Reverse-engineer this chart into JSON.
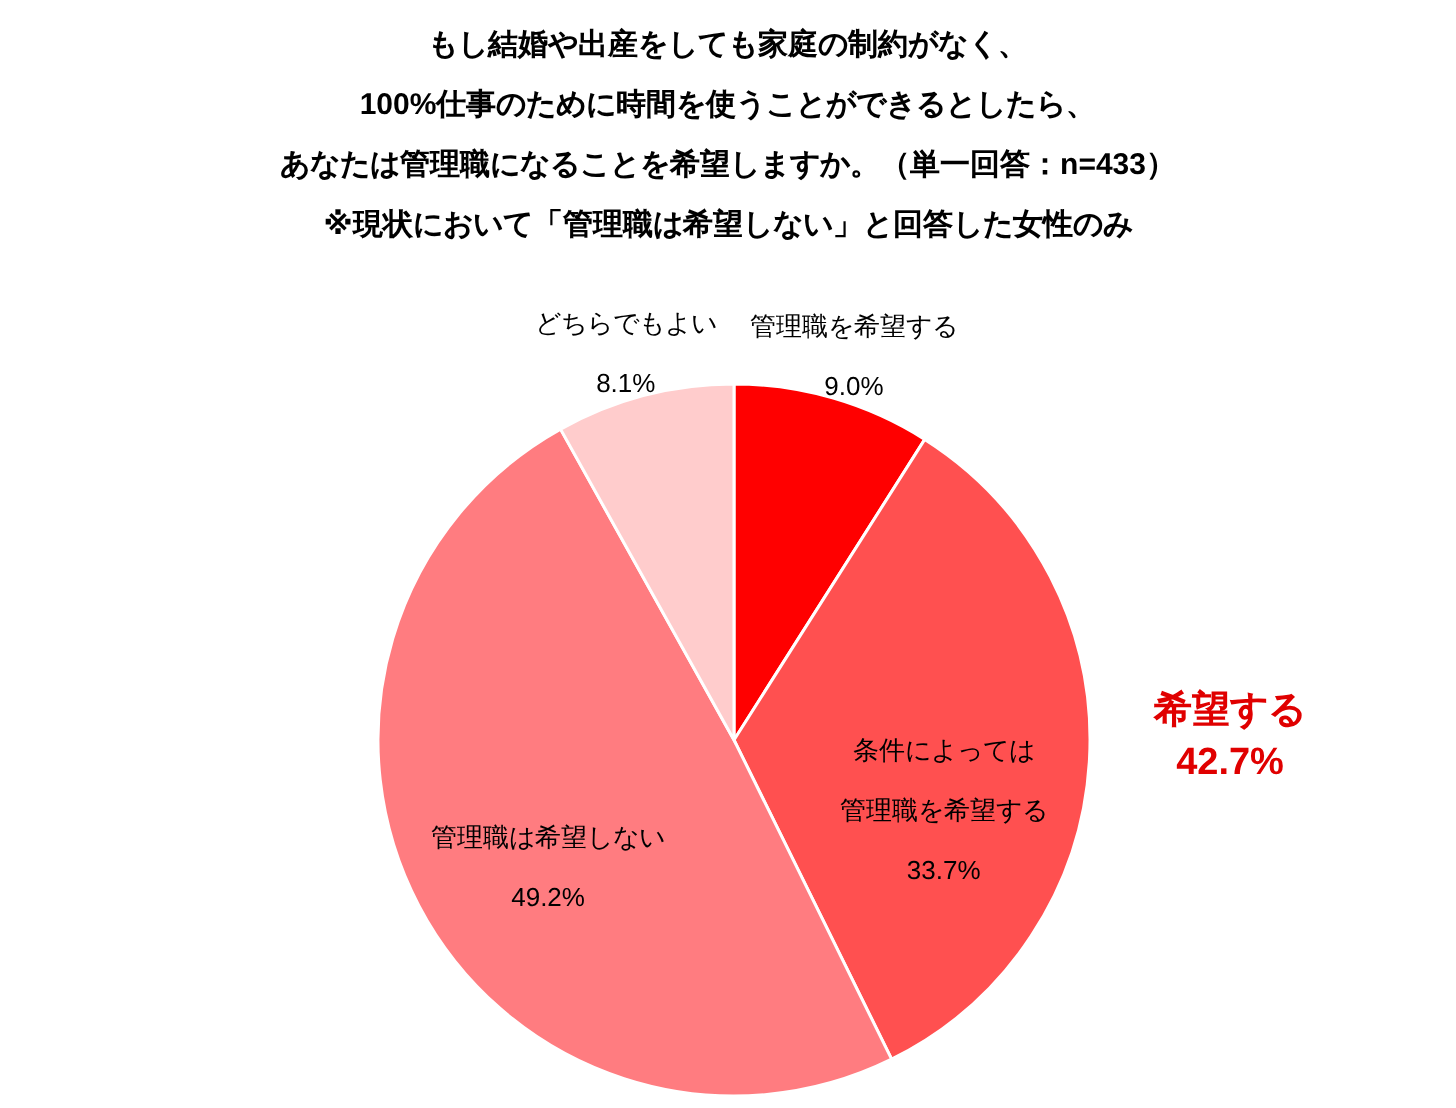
{
  "chart_data": {
    "type": "pie",
    "title": [
      "もし結婚や出産をしても家庭の制約がなく、",
      "100%仕事のために時間を使うことができるとしたら、",
      "あなたは管理職になることを希望しますか。（単一回答：n=433）",
      "※現状において「管理職は希望しない」と回答した女性のみ"
    ],
    "categories": [
      "管理職を希望する",
      "条件によっては管理職を希望する",
      "管理職は希望しない",
      "どちらでもよい"
    ],
    "values": [
      9.0,
      33.7,
      49.2,
      8.1
    ],
    "value_labels": [
      "9.0%",
      "33.7%",
      "49.2%",
      "8.1%"
    ],
    "colors": [
      "#ff0000",
      "#ff5050",
      "#ff7c80",
      "#ffcccc"
    ],
    "legend": false,
    "annotations": [
      "希望する\n42.7%"
    ]
  }
}
